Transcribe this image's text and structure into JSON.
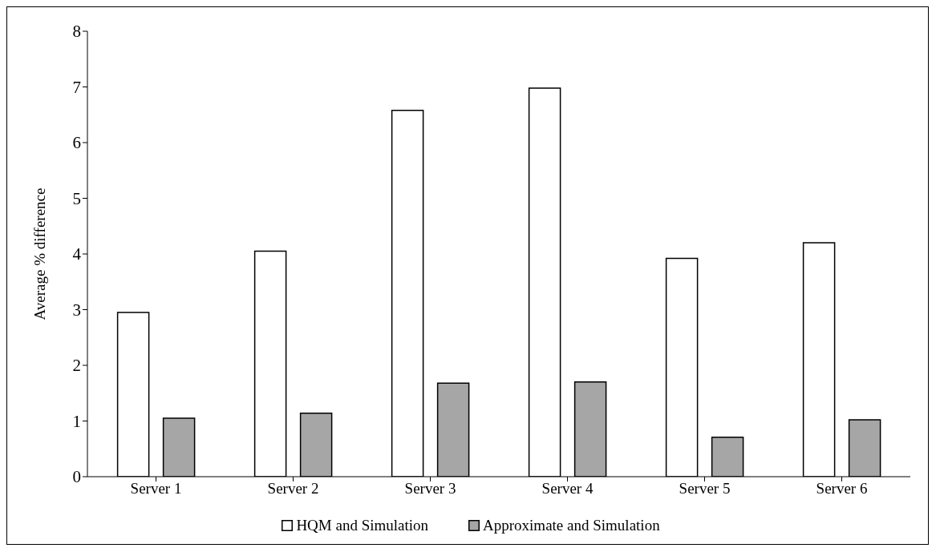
{
  "chart_data": {
    "type": "bar",
    "ylabel": "Average % difference",
    "categories": [
      "Server 1",
      "Server 2",
      "Server 3",
      "Server 4",
      "Server 5",
      "Server 6"
    ],
    "series": [
      {
        "name": "HQM and Simulation",
        "color": "#ffffff",
        "values": [
          2.95,
          4.05,
          6.58,
          6.98,
          3.92,
          4.2
        ]
      },
      {
        "name": "Approximate and Simulation",
        "color": "#a6a6a6",
        "values": [
          1.05,
          1.14,
          1.68,
          1.7,
          0.71,
          1.02
        ]
      }
    ],
    "ylim": [
      0,
      8
    ],
    "yticks": [
      0,
      1,
      2,
      3,
      4,
      5,
      6,
      7,
      8
    ],
    "grid": false,
    "legend": "bottom"
  }
}
